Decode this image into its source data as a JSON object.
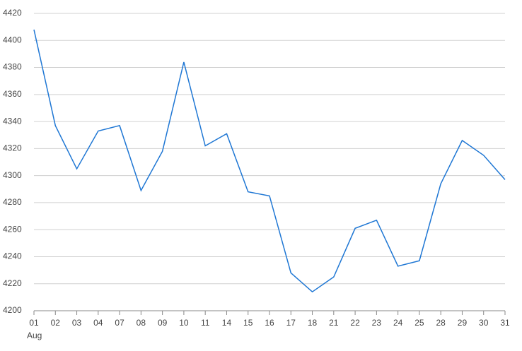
{
  "chart_data": {
    "type": "line",
    "categories": [
      "01",
      "02",
      "03",
      "04",
      "07",
      "08",
      "09",
      "10",
      "11",
      "14",
      "15",
      "16",
      "17",
      "18",
      "21",
      "22",
      "23",
      "24",
      "25",
      "28",
      "29",
      "30",
      "31"
    ],
    "x_period_label": "Aug",
    "series": [
      {
        "color": "#1f77d4",
        "values": [
          4408,
          4337,
          4305,
          4333,
          4337,
          4289,
          4318,
          4384,
          4322,
          4331,
          4288,
          4285,
          4228,
          4214,
          4225,
          4261,
          4267,
          4233,
          4237,
          4294,
          4326,
          4315,
          4297
        ]
      }
    ],
    "ylim": [
      4200,
      4420
    ],
    "yticks": [
      4200,
      4220,
      4240,
      4260,
      4280,
      4300,
      4320,
      4340,
      4360,
      4380,
      4400,
      4420
    ],
    "grid": true
  }
}
